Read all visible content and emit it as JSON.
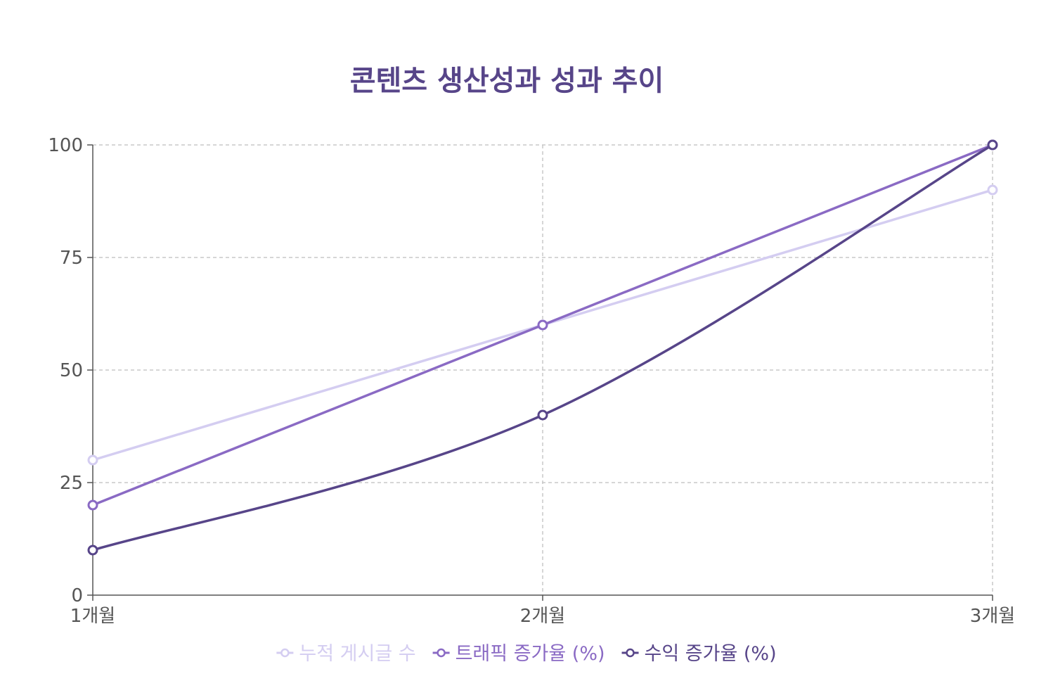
{
  "chart_data": {
    "type": "line",
    "title": "콘텐츠 생산성과 성과 추이",
    "xlabel": "",
    "ylabel": "",
    "categories": [
      "1개월",
      "2개월",
      "3개월"
    ],
    "ylim": [
      0,
      100
    ],
    "yticks": [
      "0",
      "25",
      "50",
      "75",
      "100"
    ],
    "grid": true,
    "legend_position": "bottom",
    "series": [
      {
        "name": "누적 게시글 수",
        "values": [
          30,
          60,
          90
        ],
        "color": "#d4cdf1",
        "smooth": false
      },
      {
        "name": "트래픽 증가율 (%)",
        "values": [
          20,
          60,
          100
        ],
        "color": "#8a6ac4",
        "smooth": false
      },
      {
        "name": "수익 증가율 (%)",
        "values": [
          10,
          40,
          100
        ],
        "color": "#574589",
        "smooth": true
      }
    ],
    "colors": {
      "title": "#574589",
      "axis": "#555555",
      "grid": "#c8c8c8",
      "tick_text": "#555555"
    }
  }
}
